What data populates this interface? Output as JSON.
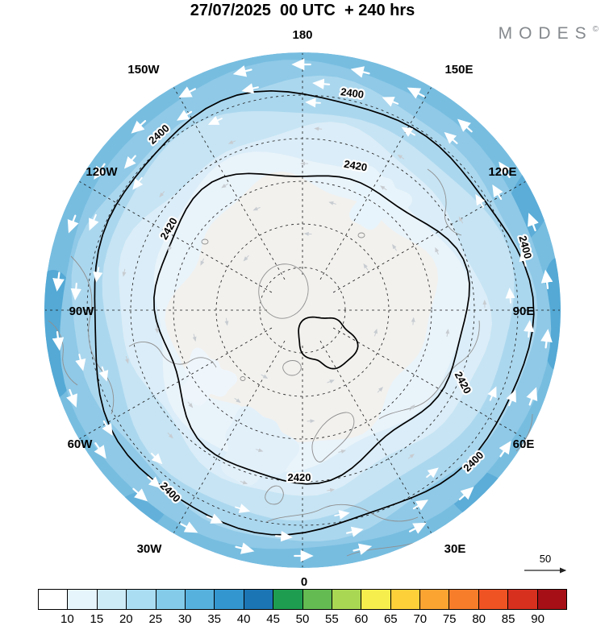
{
  "header": {
    "title": "27/07/2025  00 UTC  + 240 hrs",
    "logo": "MODES",
    "logo_mark": "©"
  },
  "map": {
    "longitude_labels": [
      "180",
      "150W",
      "150E",
      "120W",
      "120E",
      "90W",
      "90E",
      "60W",
      "60E",
      "30W",
      "30E",
      "0"
    ],
    "contour_labels": {
      "c2400": "2400",
      "c2420": "2420"
    },
    "wind_reference": {
      "value": "50"
    }
  },
  "chart_data": {
    "type": "heatmap",
    "title": "27/07/2025  00 UTC  + 240 hrs",
    "description": "Northern Hemisphere polar stereographic forecast map: shaded wind speed with colorbar, labeled geopotential contours 2400 and 2420, white wind vectors around the periphery, wind reference arrow of 50",
    "projection": "north-polar-stereographic",
    "contour_levels_labeled": [
      2400,
      2420
    ],
    "contour_interval": 20,
    "longitude_ring_labels": [
      "180",
      "150W",
      "150E",
      "120W",
      "120E",
      "90W",
      "90E",
      "60W",
      "60E",
      "30W",
      "30E",
      "0"
    ],
    "wind_reference_value": 50,
    "legend_position": "bottom",
    "colorbar": {
      "tick_labels": [
        "10",
        "15",
        "20",
        "25",
        "30",
        "35",
        "40",
        "45",
        "50",
        "55",
        "60",
        "65",
        "70",
        "75",
        "80",
        "85",
        "90"
      ],
      "colors": [
        "#ffffff",
        "#e6f4fb",
        "#cdeaf7",
        "#aadcf2",
        "#83cbe9",
        "#57b1dd",
        "#3396cf",
        "#1b75b5",
        "#1e9d50",
        "#63bb51",
        "#a9d753",
        "#f5ee4d",
        "#fdd03a",
        "#fca432",
        "#f87d2a",
        "#ef5223",
        "#d7301f",
        "#a50f15"
      ]
    }
  }
}
